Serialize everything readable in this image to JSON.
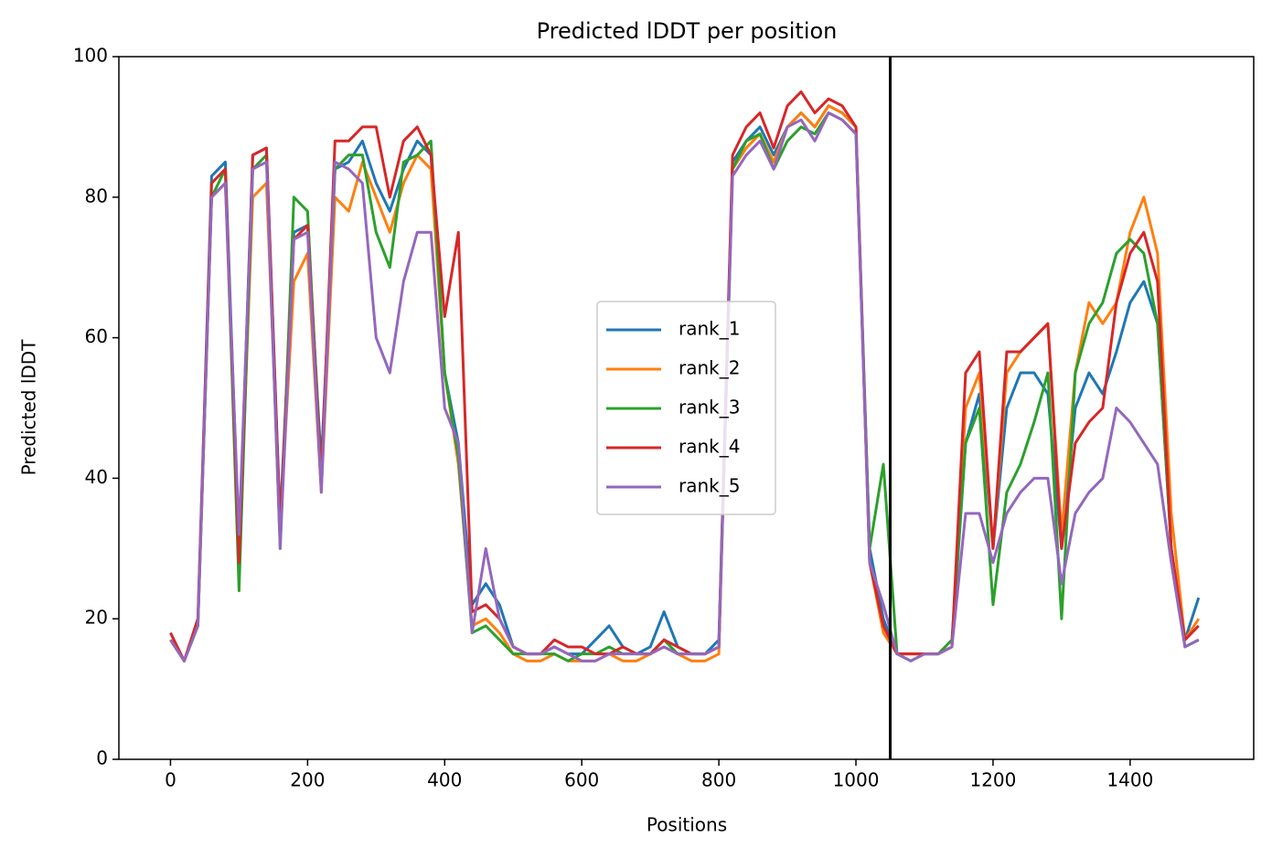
{
  "chart_data": {
    "type": "line",
    "title": "Predicted lDDT per position",
    "xlabel": "Positions",
    "ylabel": "Predicted lDDT",
    "x": [
      0,
      20,
      40,
      60,
      80,
      100,
      120,
      140,
      160,
      180,
      200,
      220,
      240,
      260,
      280,
      300,
      320,
      340,
      360,
      380,
      400,
      420,
      440,
      460,
      480,
      500,
      520,
      540,
      560,
      580,
      600,
      620,
      640,
      660,
      680,
      700,
      720,
      740,
      760,
      780,
      800,
      820,
      840,
      860,
      880,
      900,
      920,
      940,
      960,
      980,
      1000,
      1020,
      1040,
      1060,
      1080,
      1100,
      1120,
      1140,
      1160,
      1180,
      1200,
      1220,
      1240,
      1260,
      1280,
      1300,
      1320,
      1340,
      1360,
      1380,
      1400,
      1420,
      1440,
      1460,
      1480,
      1500
    ],
    "series": [
      {
        "name": "rank_1",
        "color": "#1f77b4",
        "values": [
          17,
          14,
          20,
          83,
          85,
          30,
          86,
          87,
          34,
          75,
          76,
          42,
          84,
          85,
          88,
          82,
          78,
          84,
          88,
          86,
          55,
          45,
          22,
          25,
          22,
          16,
          15,
          15,
          16,
          15,
          15,
          17,
          19,
          16,
          15,
          16,
          21,
          16,
          15,
          15,
          17,
          85,
          88,
          90,
          86,
          90,
          92,
          90,
          93,
          92,
          90,
          30,
          20,
          15,
          15,
          15,
          15,
          16,
          45,
          52,
          30,
          50,
          55,
          55,
          52,
          30,
          50,
          55,
          52,
          58,
          65,
          68,
          62,
          30,
          17,
          23
        ]
      },
      {
        "name": "rank_2",
        "color": "#ff7f0e",
        "values": [
          17,
          14,
          19,
          80,
          82,
          28,
          80,
          82,
          33,
          68,
          72,
          38,
          80,
          78,
          85,
          80,
          75,
          82,
          86,
          84,
          55,
          42,
          19,
          20,
          18,
          15,
          14,
          14,
          15,
          14,
          14,
          14,
          15,
          14,
          14,
          15,
          16,
          15,
          14,
          14,
          15,
          84,
          87,
          89,
          85,
          90,
          92,
          90,
          93,
          92,
          90,
          28,
          18,
          15,
          15,
          15,
          15,
          16,
          50,
          55,
          30,
          55,
          58,
          60,
          62,
          32,
          55,
          65,
          62,
          65,
          75,
          80,
          72,
          35,
          17,
          20
        ]
      },
      {
        "name": "rank_3",
        "color": "#2ca02c",
        "values": [
          17,
          14,
          19,
          80,
          84,
          24,
          84,
          86,
          30,
          80,
          78,
          40,
          84,
          86,
          86,
          75,
          70,
          85,
          86,
          88,
          55,
          43,
          18,
          19,
          17,
          15,
          15,
          15,
          15,
          14,
          15,
          15,
          16,
          15,
          15,
          15,
          17,
          15,
          15,
          15,
          16,
          84,
          88,
          89,
          84,
          88,
          90,
          89,
          92,
          91,
          89,
          30,
          42,
          15,
          14,
          15,
          15,
          17,
          45,
          50,
          22,
          38,
          42,
          48,
          55,
          20,
          55,
          62,
          65,
          72,
          74,
          72,
          62,
          30,
          16,
          17
        ]
      },
      {
        "name": "rank_4",
        "color": "#d62728",
        "values": [
          18,
          14,
          20,
          82,
          84,
          28,
          86,
          87,
          33,
          74,
          76,
          40,
          88,
          88,
          90,
          90,
          80,
          88,
          90,
          86,
          63,
          75,
          21,
          22,
          20,
          16,
          15,
          15,
          17,
          16,
          16,
          15,
          15,
          16,
          15,
          15,
          17,
          16,
          15,
          15,
          16,
          86,
          90,
          92,
          87,
          93,
          95,
          92,
          94,
          93,
          90,
          28,
          19,
          15,
          15,
          15,
          15,
          16,
          55,
          58,
          30,
          58,
          58,
          60,
          62,
          30,
          45,
          48,
          50,
          65,
          72,
          75,
          68,
          30,
          17,
          19
        ]
      },
      {
        "name": "rank_5",
        "color": "#9467bd",
        "values": [
          17,
          14,
          19,
          80,
          82,
          32,
          84,
          85,
          30,
          74,
          75,
          38,
          85,
          84,
          82,
          60,
          55,
          68,
          75,
          75,
          50,
          45,
          18,
          30,
          20,
          16,
          15,
          15,
          16,
          15,
          14,
          14,
          15,
          15,
          15,
          15,
          16,
          15,
          15,
          15,
          16,
          83,
          86,
          88,
          84,
          90,
          91,
          88,
          92,
          91,
          89,
          28,
          22,
          15,
          14,
          15,
          15,
          16,
          35,
          35,
          28,
          35,
          38,
          40,
          40,
          25,
          35,
          38,
          40,
          50,
          48,
          45,
          42,
          28,
          16,
          17
        ]
      }
    ],
    "vline": 1050,
    "vline_color": "#000000",
    "xlim": [
      -75.3,
      1580.3
    ],
    "xticks": [
      0,
      200,
      400,
      600,
      800,
      1000,
      1200,
      1400
    ],
    "ylim": [
      0,
      100
    ],
    "yticks": [
      0,
      20,
      40,
      60,
      80,
      100
    ],
    "legend": "center",
    "grid": false
  }
}
